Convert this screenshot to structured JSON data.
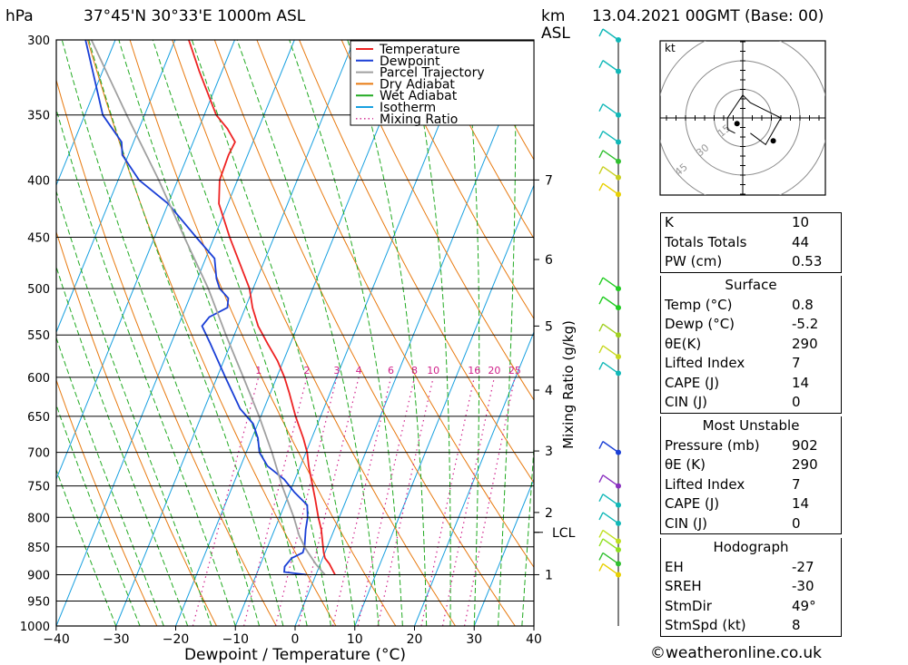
{
  "header": {
    "pressure_unit": "hPa",
    "location": "37°45'N  30°33'E  1000m  ASL",
    "height_unit_km": "km",
    "height_unit_asl": "ASL",
    "datetime": "13.04.2021  00GMT  (Base: 00)"
  },
  "chart_data": {
    "type": "line",
    "subtype": "skew-T log-P diagram",
    "xlabel": "Dewpoint / Temperature (°C)",
    "ylabel": "hPa",
    "right_axis_label": "Mixing Ratio (g/kg)",
    "x_ticks": [
      -40,
      -30,
      -20,
      -10,
      0,
      10,
      20,
      30,
      40
    ],
    "xlim": [
      -40,
      40
    ],
    "pressure_levels": [
      300,
      350,
      400,
      450,
      500,
      550,
      600,
      650,
      700,
      750,
      800,
      850,
      900,
      950,
      1000
    ],
    "ylim": [
      1000,
      300
    ],
    "y_scale": "log",
    "height_ticks_km": [
      {
        "label": "7",
        "pressure": 400
      },
      {
        "label": "6",
        "pressure": 471
      },
      {
        "label": "5",
        "pressure": 540
      },
      {
        "label": "4",
        "pressure": 616
      },
      {
        "label": "3",
        "pressure": 698
      },
      {
        "label": "2",
        "pressure": 792
      },
      {
        "label": "LCL",
        "pressure": 825
      },
      {
        "label": "1",
        "pressure": 900
      }
    ],
    "mixing_ratio_labels": [
      "1",
      "2",
      "3",
      "4",
      "6",
      "8",
      "10",
      "16",
      "20",
      "25"
    ],
    "mixing_ratio_values": [
      1,
      2,
      3,
      4,
      6,
      8,
      10,
      16,
      20,
      25
    ],
    "legend": [
      {
        "name": "Temperature",
        "color": "#ee2222",
        "style": "solid"
      },
      {
        "name": "Dewpoint",
        "color": "#1a3fd6",
        "style": "solid"
      },
      {
        "name": "Parcel Trajectory",
        "color": "#a0a0a0",
        "style": "solid"
      },
      {
        "name": "Dry Adiabat",
        "color": "#e87a10",
        "style": "solid"
      },
      {
        "name": "Wet Adiabat",
        "color": "#22aa22",
        "style": "solid"
      },
      {
        "name": "Isotherm",
        "color": "#18a0e0",
        "style": "solid"
      },
      {
        "name": "Mixing Ratio",
        "color": "#d0208a",
        "style": "dotted"
      }
    ],
    "legend_placement": "top-right",
    "series": [
      {
        "name": "Temperature",
        "color": "#ee2222",
        "points": [
          [
            900,
            3.2
          ],
          [
            880,
            1.5
          ],
          [
            870,
            0.4
          ],
          [
            860,
            -0.2
          ],
          [
            850,
            -0.7
          ],
          [
            820,
            -2.2
          ],
          [
            800,
            -3.5
          ],
          [
            770,
            -5.3
          ],
          [
            750,
            -6.6
          ],
          [
            720,
            -8.6
          ],
          [
            700,
            -9.8
          ],
          [
            680,
            -11.4
          ],
          [
            650,
            -14.2
          ],
          [
            620,
            -16.8
          ],
          [
            600,
            -18.7
          ],
          [
            580,
            -21.0
          ],
          [
            560,
            -23.8
          ],
          [
            540,
            -26.6
          ],
          [
            520,
            -28.8
          ],
          [
            500,
            -30.6
          ],
          [
            470,
            -34.6
          ],
          [
            450,
            -37.4
          ],
          [
            420,
            -41.5
          ],
          [
            400,
            -43.0
          ],
          [
            380,
            -43.2
          ],
          [
            370,
            -43.0
          ],
          [
            360,
            -45.2
          ],
          [
            350,
            -48.0
          ],
          [
            320,
            -53.8
          ],
          [
            300,
            -57.7
          ]
        ]
      },
      {
        "name": "Dewpoint",
        "color": "#1a3fd6",
        "points": [
          [
            900,
            -1.6
          ],
          [
            895,
            -5.5
          ],
          [
            885,
            -5.8
          ],
          [
            870,
            -5.2
          ],
          [
            860,
            -3.7
          ],
          [
            850,
            -3.8
          ],
          [
            820,
            -4.8
          ],
          [
            800,
            -5.3
          ],
          [
            780,
            -6.2
          ],
          [
            760,
            -9.2
          ],
          [
            740,
            -11.8
          ],
          [
            720,
            -15.5
          ],
          [
            700,
            -17.8
          ],
          [
            680,
            -19.0
          ],
          [
            660,
            -20.8
          ],
          [
            640,
            -24.0
          ],
          [
            600,
            -28.6
          ],
          [
            560,
            -33.4
          ],
          [
            540,
            -36.0
          ],
          [
            530,
            -35.4
          ],
          [
            520,
            -33.0
          ],
          [
            510,
            -33.5
          ],
          [
            500,
            -35.6
          ],
          [
            490,
            -36.8
          ],
          [
            470,
            -38.5
          ],
          [
            450,
            -43.0
          ],
          [
            420,
            -50.0
          ],
          [
            400,
            -56.5
          ],
          [
            380,
            -61.0
          ],
          [
            370,
            -62.0
          ],
          [
            350,
            -67.0
          ],
          [
            300,
            -75.0
          ]
        ]
      },
      {
        "name": "Parcel Trajectory",
        "color": "#a0a0a0",
        "points": [
          [
            900,
            1.5
          ],
          [
            880,
            -0.8
          ],
          [
            860,
            -2.8
          ],
          [
            850,
            -3.8
          ],
          [
            830,
            -5.5
          ],
          [
            800,
            -7.6
          ],
          [
            750,
            -11.7
          ],
          [
            700,
            -15.7
          ],
          [
            650,
            -20.3
          ],
          [
            600,
            -25.6
          ],
          [
            550,
            -31.4
          ],
          [
            500,
            -37.5
          ],
          [
            450,
            -45.0
          ],
          [
            400,
            -53.2
          ],
          [
            350,
            -63.0
          ],
          [
            300,
            -74.0
          ]
        ]
      }
    ]
  },
  "hodograph": {
    "unit": "kt",
    "ring_labels": [
      "15",
      "30",
      "45"
    ],
    "points_uv": [
      [
        -2,
        -4
      ],
      [
        -4,
        -3
      ],
      [
        -4,
        0
      ],
      [
        -2,
        3
      ],
      [
        0,
        6
      ],
      [
        2,
        4
      ],
      [
        4,
        3
      ],
      [
        10,
        0
      ],
      [
        6,
        -7
      ],
      [
        2,
        -4
      ]
    ],
    "storm_motion_uv": [
      -3,
      -3
    ],
    "mean_wind_uv": [
      8,
      -6
    ]
  },
  "wind_profile": {
    "levels": [
      {
        "pressure": 300,
        "color": "#10b8b8"
      },
      {
        "pressure": 320,
        "color": "#10b8b8"
      },
      {
        "pressure": 350,
        "color": "#10b8b8"
      },
      {
        "pressure": 370,
        "color": "#10b8b8"
      },
      {
        "pressure": 385,
        "color": "#30c030"
      },
      {
        "pressure": 398,
        "color": "#c8d020"
      },
      {
        "pressure": 412,
        "color": "#e8d000"
      },
      {
        "pressure": 500,
        "color": "#22cc22"
      },
      {
        "pressure": 520,
        "color": "#22cc22"
      },
      {
        "pressure": 550,
        "color": "#a0d020"
      },
      {
        "pressure": 575,
        "color": "#c8d820"
      },
      {
        "pressure": 595,
        "color": "#10b8b8"
      },
      {
        "pressure": 700,
        "color": "#1a3fd6"
      },
      {
        "pressure": 750,
        "color": "#8a30c0"
      },
      {
        "pressure": 780,
        "color": "#10b8b8"
      },
      {
        "pressure": 810,
        "color": "#10b8b8"
      },
      {
        "pressure": 840,
        "color": "#c0e020"
      },
      {
        "pressure": 855,
        "color": "#90e020"
      },
      {
        "pressure": 880,
        "color": "#30c030"
      },
      {
        "pressure": 900,
        "color": "#e8d000"
      }
    ]
  },
  "indices": {
    "rows": [
      {
        "label": "K",
        "value": "10"
      },
      {
        "label": "Totals Totals",
        "value": "44"
      },
      {
        "label": "PW (cm)",
        "value": "0.53"
      }
    ]
  },
  "surface": {
    "title": "Surface",
    "rows": [
      {
        "label": "Temp (°C)",
        "value": "0.8"
      },
      {
        "label": "Dewp (°C)",
        "value": "-5.2"
      },
      {
        "label": "θE(K)",
        "value": "290"
      },
      {
        "label": "Lifted Index",
        "value": "7"
      },
      {
        "label": "CAPE (J)",
        "value": "14"
      },
      {
        "label": "CIN (J)",
        "value": "0"
      }
    ]
  },
  "most_unstable": {
    "title": "Most Unstable",
    "rows": [
      {
        "label": "Pressure (mb)",
        "value": "902"
      },
      {
        "label": "θE (K)",
        "value": "290"
      },
      {
        "label": "Lifted Index",
        "value": "7"
      },
      {
        "label": "CAPE (J)",
        "value": "14"
      },
      {
        "label": "CIN (J)",
        "value": "0"
      }
    ]
  },
  "hodograph_table": {
    "title": "Hodograph",
    "rows": [
      {
        "label": "EH",
        "value": "-27"
      },
      {
        "label": "SREH",
        "value": "-30"
      },
      {
        "label": "StmDir",
        "value": "49°"
      },
      {
        "label": "StmSpd (kt)",
        "value": "8"
      }
    ]
  },
  "credit": "©weatheronline.co.uk"
}
